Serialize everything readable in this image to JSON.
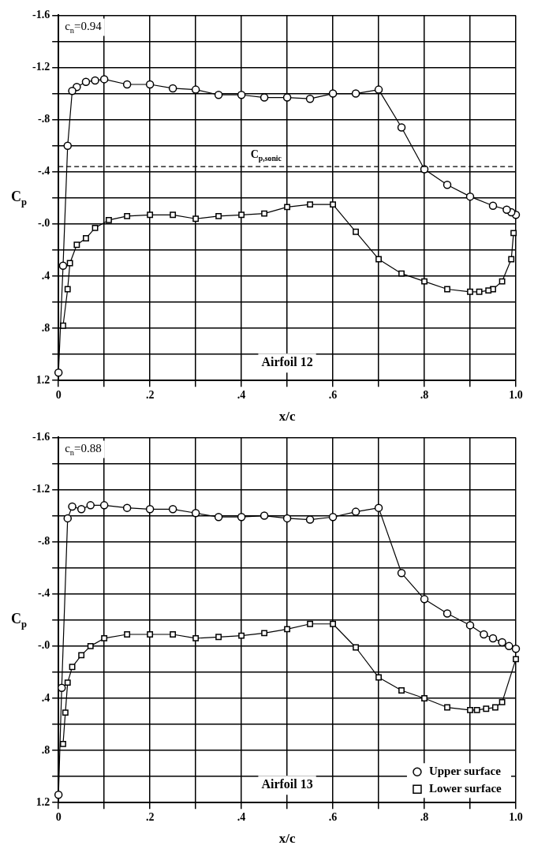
{
  "chart_data": [
    {
      "type": "line",
      "title": "Airfoil 12",
      "xlabel": "x/c",
      "ylabel": "C$_{p}$",
      "annotations": [
        "c$_{n}$=0.94"
      ],
      "xlim": [
        0,
        1
      ],
      "xticks": [
        0,
        {
          "value": 0.1,
          "label": null
        },
        {
          "value": 0.2,
          "label": ".2"
        },
        {
          "value": 0.3,
          "label": null
        },
        {
          "value": 0.4,
          "label": ".4"
        },
        {
          "value": 0.5,
          "label": null
        },
        {
          "value": 0.6,
          "label": ".6"
        },
        {
          "value": 0.7,
          "label": null
        },
        {
          "value": 0.8,
          "label": ".8"
        },
        {
          "value": 0.9,
          "label": null
        },
        {
          "value": 1,
          "label": "1.0"
        }
      ],
      "ylim": [
        1.2,
        -1.6
      ],
      "yticks": [
        -1.6,
        {
          "value": -1.4,
          "label": null
        },
        -1.2,
        {
          "value": -1.0,
          "label": null
        },
        {
          "value": -0.8,
          "label": "-.8"
        },
        {
          "value": -0.6,
          "label": null
        },
        {
          "value": -0.4,
          "label": "-.4"
        },
        {
          "value": -0.2,
          "label": null
        },
        {
          "value": 0,
          "label": "-.0"
        },
        {
          "value": 0.2,
          "label": null
        },
        {
          "value": 0.4,
          "label": ".4"
        },
        {
          "value": 0.6,
          "label": null
        },
        {
          "value": 0.8,
          "label": ".8"
        },
        {
          "value": 1.0,
          "label": null
        },
        1.2
      ],
      "grid": true,
      "legend": false,
      "ref_lines": [
        {
          "axis": "y",
          "value": -0.44,
          "label": "C$_{p,sonic}$",
          "line_style": "dashed"
        }
      ],
      "series": [
        {
          "color": "#000000",
          "marker": "circle",
          "x": [
            1.0,
            0.99,
            0.98,
            0.95,
            0.9,
            0.85,
            0.8,
            0.75,
            0.7,
            0.65,
            0.6,
            0.55,
            0.5,
            0.45,
            0.4,
            0.35,
            0.3,
            0.25,
            0.2,
            0.15,
            0.1,
            0.08,
            0.06,
            0.04,
            0.03,
            0.02,
            0.01,
            0.0
          ],
          "values": [
            -0.07,
            -0.09,
            -0.11,
            -0.14,
            -0.21,
            -0.3,
            -0.42,
            -0.74,
            -1.03,
            -1.0,
            -1.0,
            -0.96,
            -0.97,
            -0.97,
            -0.99,
            -0.99,
            -1.03,
            -1.04,
            -1.07,
            -1.07,
            -1.11,
            -1.1,
            -1.09,
            -1.05,
            -1.02,
            -0.6,
            0.32,
            1.14
          ]
        },
        {
          "color": "#000000",
          "marker": "square",
          "x": [
            0.995,
            0.99,
            0.97,
            0.95,
            0.94,
            0.92,
            0.9,
            0.85,
            0.8,
            0.75,
            0.7,
            0.65,
            0.6,
            0.55,
            0.5,
            0.45,
            0.4,
            0.35,
            0.3,
            0.25,
            0.2,
            0.15,
            0.11,
            0.08,
            0.06,
            0.04,
            0.025,
            0.02,
            0.01
          ],
          "values": [
            0.07,
            0.27,
            0.44,
            0.5,
            0.51,
            0.52,
            0.52,
            0.5,
            0.44,
            0.38,
            0.27,
            0.06,
            -0.15,
            -0.15,
            -0.13,
            -0.08,
            -0.07,
            -0.06,
            -0.04,
            -0.07,
            -0.07,
            -0.06,
            -0.03,
            0.03,
            0.11,
            0.16,
            0.3,
            0.5,
            0.78
          ]
        }
      ]
    },
    {
      "type": "line",
      "title": "Airfoil 13",
      "xlabel": "x/c",
      "ylabel": "C$_{p}$",
      "annotations": [
        "c$_{n}$=0.88"
      ],
      "xlim": [
        0,
        1
      ],
      "xticks": [
        0,
        {
          "value": 0.1,
          "label": null
        },
        {
          "value": 0.2,
          "label": ".2"
        },
        {
          "value": 0.3,
          "label": null
        },
        {
          "value": 0.4,
          "label": ".4"
        },
        {
          "value": 0.5,
          "label": null
        },
        {
          "value": 0.6,
          "label": ".6"
        },
        {
          "value": 0.7,
          "label": null
        },
        {
          "value": 0.8,
          "label": ".8"
        },
        {
          "value": 0.9,
          "label": null
        },
        {
          "value": 1,
          "label": "1.0"
        }
      ],
      "ylim": [
        1.2,
        -1.6
      ],
      "yticks": [
        -1.6,
        {
          "value": -1.4,
          "label": null
        },
        -1.2,
        {
          "value": -1.0,
          "label": null
        },
        {
          "value": -0.8,
          "label": "-.8"
        },
        {
          "value": -0.6,
          "label": null
        },
        {
          "value": -0.4,
          "label": "-.4"
        },
        {
          "value": -0.2,
          "label": null
        },
        {
          "value": 0,
          "label": "-.0"
        },
        {
          "value": 0.2,
          "label": null
        },
        {
          "value": 0.4,
          "label": ".4"
        },
        {
          "value": 0.6,
          "label": null
        },
        {
          "value": 0.8,
          "label": ".8"
        },
        {
          "value": 1.0,
          "label": null
        },
        1.2
      ],
      "grid": true,
      "legend": "bottom right",
      "series": [
        {
          "name": "Upper surface",
          "color": "#000000",
          "marker": "circle",
          "x": [
            1.0,
            0.985,
            0.97,
            0.95,
            0.93,
            0.9,
            0.85,
            0.8,
            0.75,
            0.7,
            0.65,
            0.6,
            0.55,
            0.5,
            0.45,
            0.4,
            0.35,
            0.3,
            0.25,
            0.2,
            0.15,
            0.1,
            0.07,
            0.05,
            0.03,
            0.02,
            0.007,
            0.0
          ],
          "values": [
            0.02,
            0.0,
            -0.03,
            -0.06,
            -0.09,
            -0.16,
            -0.25,
            -0.36,
            -0.56,
            -1.06,
            -1.03,
            -0.99,
            -0.97,
            -0.98,
            -1.0,
            -0.99,
            -0.99,
            -1.02,
            -1.05,
            -1.05,
            -1.06,
            -1.08,
            -1.08,
            -1.05,
            -1.07,
            -0.98,
            0.32,
            1.14
          ]
        },
        {
          "name": "Lower surface",
          "color": "#000000",
          "marker": "square",
          "x": [
            1.0,
            0.97,
            0.955,
            0.935,
            0.915,
            0.9,
            0.85,
            0.8,
            0.75,
            0.7,
            0.65,
            0.6,
            0.55,
            0.5,
            0.45,
            0.4,
            0.35,
            0.3,
            0.25,
            0.2,
            0.15,
            0.1,
            0.07,
            0.05,
            0.03,
            0.02,
            0.015,
            0.01
          ],
          "values": [
            0.1,
            0.43,
            0.47,
            0.48,
            0.49,
            0.49,
            0.47,
            0.4,
            0.34,
            0.24,
            0.01,
            -0.17,
            -0.17,
            -0.13,
            -0.1,
            -0.08,
            -0.07,
            -0.06,
            -0.09,
            -0.09,
            -0.09,
            -0.06,
            0.0,
            0.07,
            0.16,
            0.28,
            0.51,
            0.75
          ]
        }
      ]
    }
  ]
}
